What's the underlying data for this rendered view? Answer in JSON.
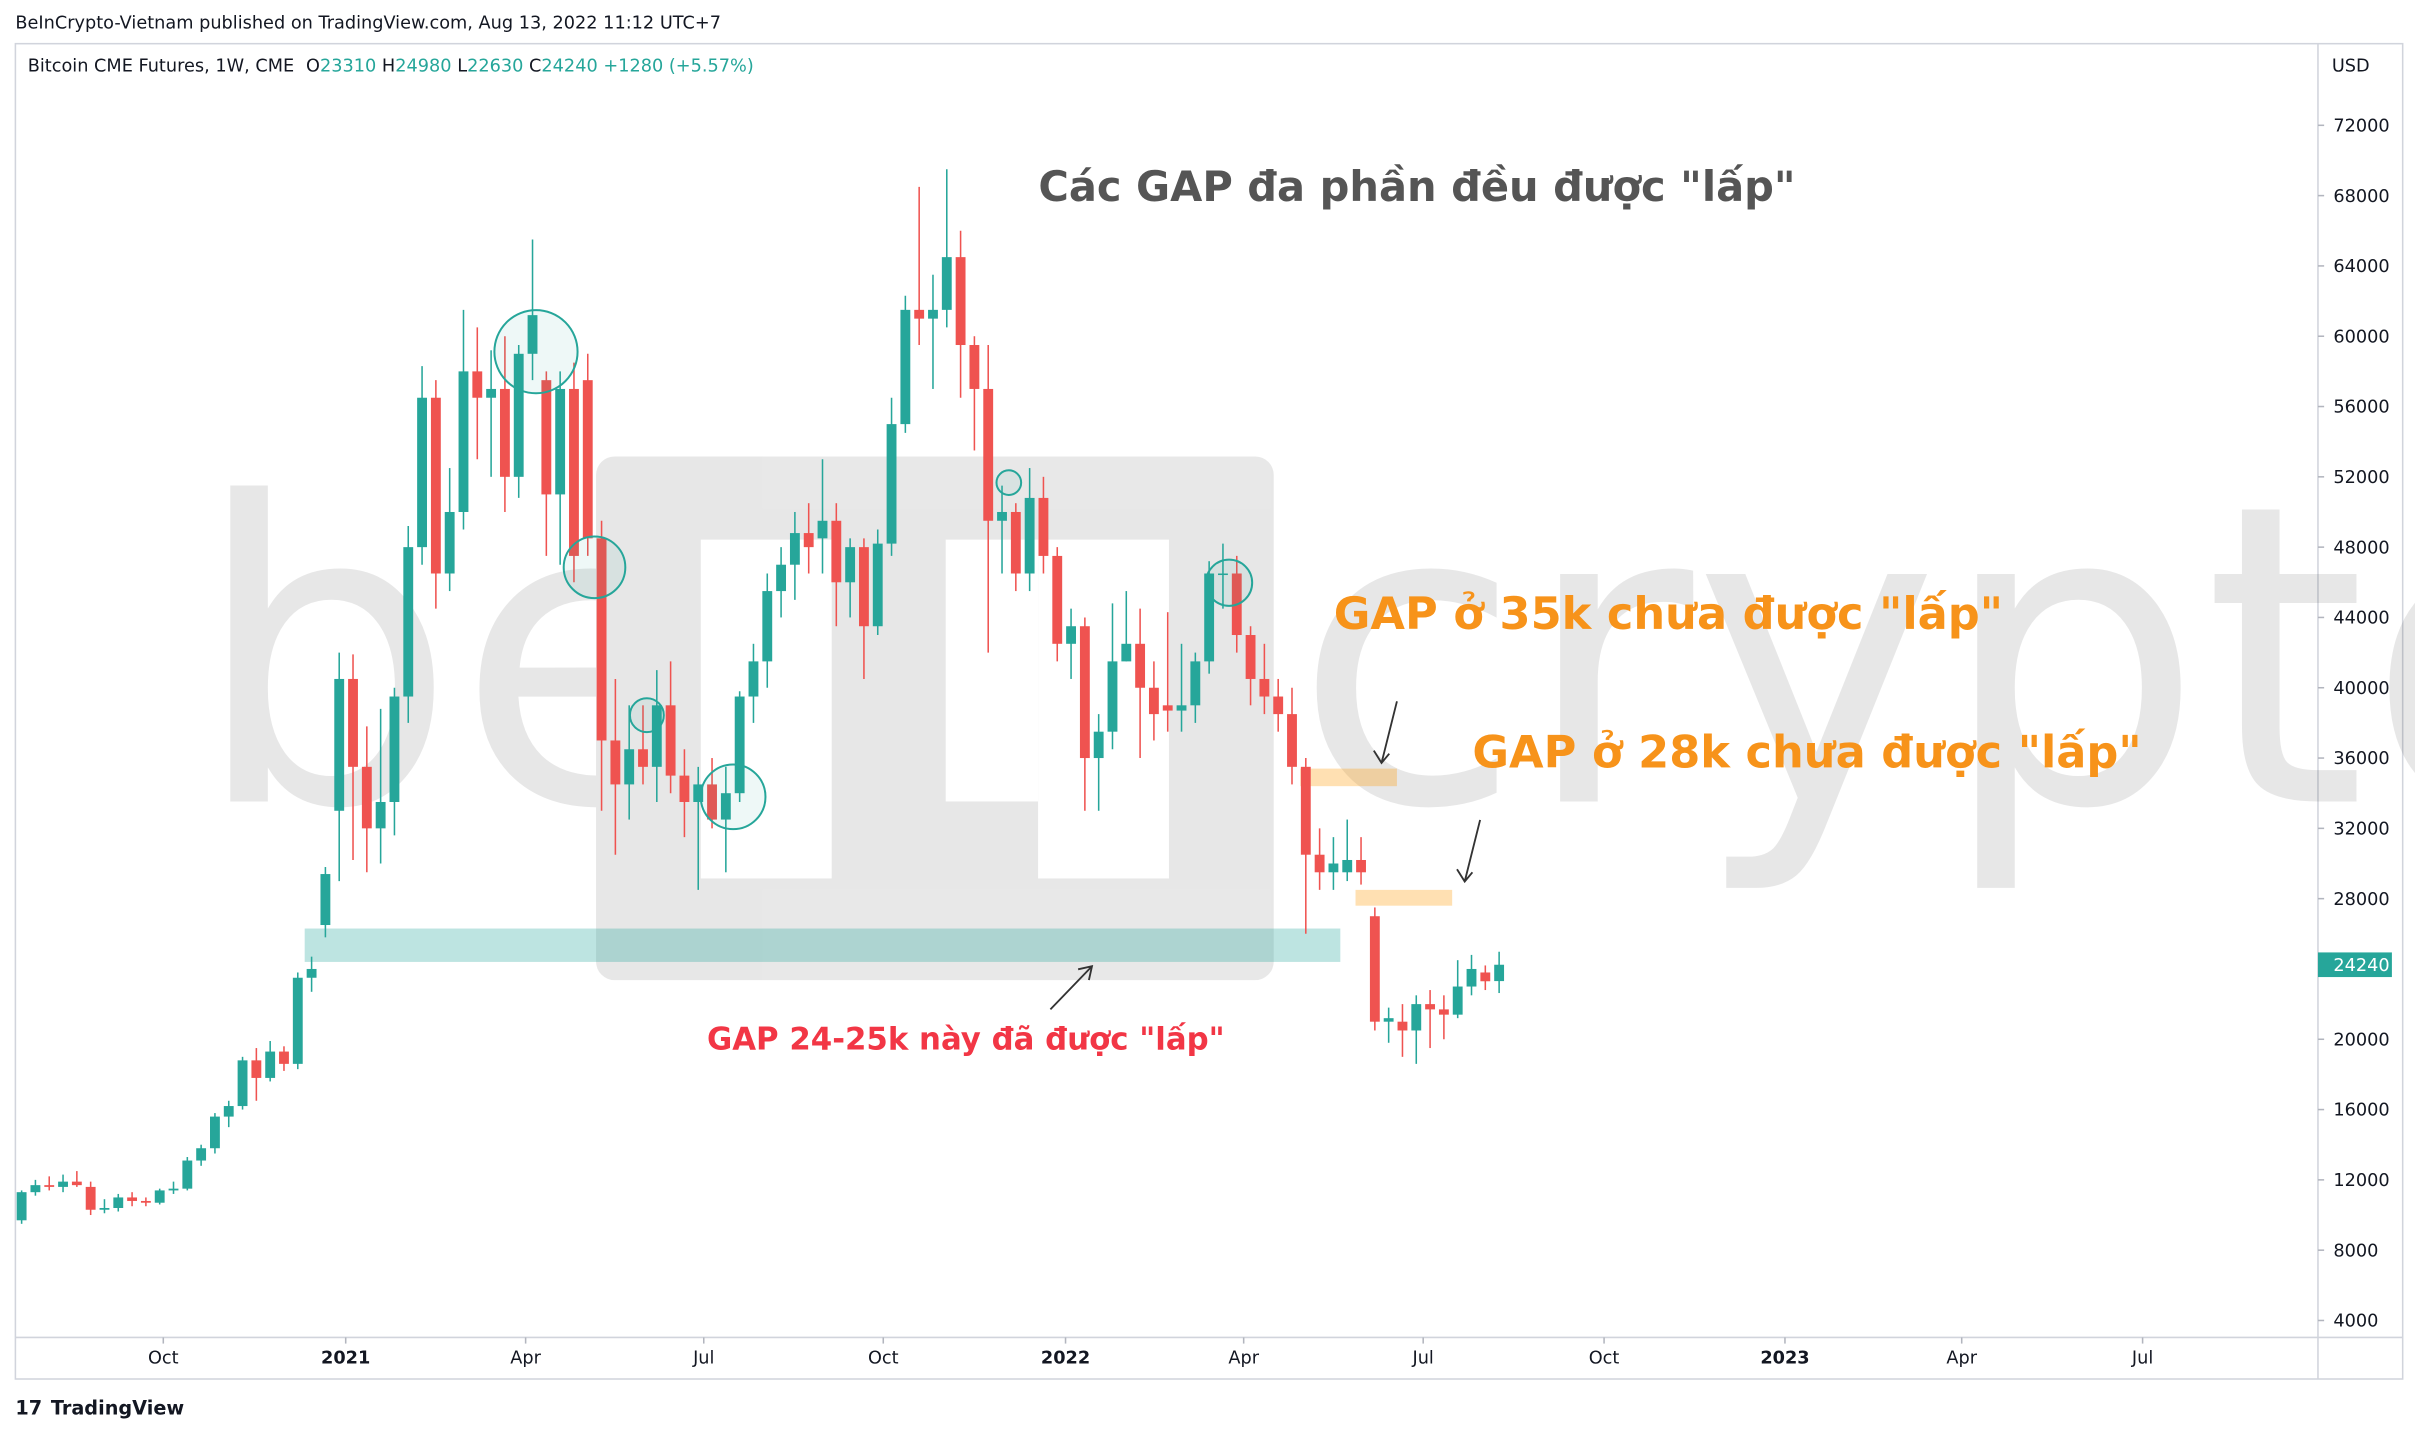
{
  "header": "BeInCrypto-Vietnam published on TradingView.com, Aug 13, 2022 11:12 UTC+7",
  "footer": "TradingView",
  "chart_data": {
    "type": "candlestick",
    "symbol": "Bitcoin CME Futures, 1W, CME",
    "legend_letters": [
      "O",
      "H",
      "L",
      "C"
    ],
    "change_label": "+1280 (+5.57%)",
    "currency": "USD",
    "title": "Các GAP đa phần đều được \"lấp\"",
    "annotations": [
      "GAP ở 35k chưa được \"lấp\"",
      "GAP ở 28k chưa được \"lấp\"",
      "GAP 24-25k này đã được \"lấp\""
    ],
    "watermark": [
      "be",
      "crypto"
    ],
    "up_color": "#26a69a",
    "down_color": "#ef5350",
    "open": [
      9700,
      11300,
      11700,
      11600,
      11900,
      11600,
      10300,
      10400,
      11000,
      10800,
      10700,
      11400,
      11500,
      13100,
      13800,
      15600,
      16200,
      18800,
      17800,
      19300,
      18600,
      23500,
      26500,
      33000,
      40500,
      35500,
      32000,
      33500,
      39500,
      48000,
      56500,
      46500,
      50000,
      58000,
      56500,
      57000,
      52000,
      59000,
      57500,
      51000,
      57000,
      57500,
      48500,
      37000,
      34500,
      36500,
      35500,
      39000,
      35000,
      33500,
      34500,
      32500,
      34000,
      39500,
      41500,
      45500,
      47000,
      48800,
      48500,
      49500,
      46000,
      48000,
      43500,
      48200,
      55000,
      61500,
      61000,
      61500,
      64500,
      59500,
      57000,
      49500,
      50000,
      46500,
      50800,
      47500,
      42500,
      43500,
      36000,
      37500,
      41500,
      42500,
      40000,
      39000,
      38700,
      39000,
      41500,
      46500,
      46500,
      43000,
      40500,
      39500,
      38500,
      35500,
      30500,
      29500,
      29500,
      30200,
      27000,
      21000,
      21000,
      20500,
      22000,
      21700,
      21400,
      23000,
      23800,
      23310
    ],
    "high": [
      11400,
      12000,
      12200,
      12300,
      12500,
      11900,
      10900,
      11200,
      11300,
      11000,
      11500,
      11900,
      13300,
      14000,
      15800,
      16500,
      19000,
      19500,
      19900,
      19600,
      23800,
      24700,
      29800,
      42000,
      41900,
      37800,
      38800,
      40000,
      49200,
      58300,
      57500,
      52500,
      61500,
      60500,
      59200,
      60000,
      59500,
      65500,
      58000,
      58000,
      58500,
      59000,
      49500,
      40500,
      39000,
      39000,
      41000,
      41500,
      36500,
      35500,
      36000,
      35500,
      39800,
      42500,
      46500,
      48000,
      50000,
      50500,
      53000,
      50500,
      48500,
      48500,
      49000,
      56500,
      62300,
      68500,
      63500,
      69500,
      66000,
      60000,
      59500,
      51500,
      50500,
      52500,
      52000,
      48000,
      44500,
      44000,
      38500,
      44800,
      45500,
      44500,
      41500,
      44300,
      42500,
      42000,
      47200,
      48200,
      47500,
      43500,
      42500,
      40500,
      40000,
      36000,
      32000,
      31500,
      32500,
      31500,
      27500,
      21800,
      22000,
      22500,
      22800,
      22500,
      24500,
      24800,
      24200,
      24980
    ],
    "low": [
      9500,
      11100,
      11400,
      11300,
      11600,
      10000,
      10100,
      10200,
      10500,
      10500,
      10600,
      11200,
      11400,
      12800,
      13500,
      15000,
      16000,
      16500,
      17600,
      18200,
      18300,
      22700,
      25800,
      29000,
      30200,
      29500,
      30000,
      31600,
      38000,
      47000,
      44500,
      45500,
      49000,
      53000,
      52000,
      50000,
      50800,
      57500,
      47500,
      47000,
      46000,
      47500,
      33000,
      30500,
      32500,
      34500,
      33500,
      34000,
      31500,
      28500,
      32000,
      29500,
      33500,
      38000,
      40000,
      44000,
      45000,
      46500,
      46500,
      43500,
      44000,
      40500,
      43000,
      47500,
      54500,
      59500,
      57000,
      60500,
      56500,
      53500,
      42000,
      46500,
      45500,
      45500,
      46500,
      41500,
      40500,
      33000,
      33000,
      36500,
      41500,
      36000,
      37000,
      37500,
      37500,
      38000,
      40800,
      44500,
      42000,
      39000,
      38500,
      37500,
      34500,
      26000,
      28500,
      28500,
      29000,
      28800,
      20500,
      19800,
      19000,
      18600,
      19500,
      20000,
      21200,
      22500,
      22800,
      22630
    ],
    "close": [
      11300,
      11700,
      11600,
      11900,
      11700,
      10300,
      10400,
      11000,
      10800,
      10700,
      11400,
      11500,
      13100,
      13800,
      15600,
      16200,
      18800,
      17800,
      19300,
      18600,
      23500,
      24000,
      29400,
      40500,
      35500,
      32000,
      33500,
      39500,
      48000,
      56500,
      46500,
      50000,
      58000,
      56500,
      57000,
      52000,
      59000,
      61200,
      51000,
      57000,
      47500,
      48500,
      37000,
      34500,
      36500,
      35500,
      39000,
      35000,
      33500,
      34500,
      32500,
      34000,
      39500,
      41500,
      45500,
      47000,
      48800,
      48000,
      49500,
      46000,
      48000,
      43500,
      48200,
      55000,
      61500,
      61000,
      61500,
      64500,
      59500,
      57000,
      49500,
      50000,
      46500,
      50800,
      47500,
      42500,
      43500,
      36000,
      37500,
      41500,
      42500,
      40000,
      38500,
      38700,
      39000,
      41500,
      46500,
      46500,
      43000,
      40500,
      39500,
      38500,
      35500,
      30500,
      29500,
      30000,
      30200,
      29500,
      21000,
      21200,
      20500,
      22000,
      21700,
      21400,
      23000,
      24000,
      23300,
      24240
    ],
    "zones": [
      {
        "from": 20.5,
        "to": 95.5,
        "low": 24400,
        "high": 26300,
        "color": "#26a69a"
      },
      {
        "from": 92.6,
        "to": 99.6,
        "low": 34400,
        "high": 35400,
        "color": "#ff9800"
      },
      {
        "from": 96.6,
        "to": 103.6,
        "low": 27600,
        "high": 28500,
        "color": "#ff9800"
      }
    ],
    "xlim": [
      -0.45,
      166.3
    ],
    "xticks": [
      {
        "value": 10.26,
        "label": "Oct"
      },
      {
        "value": 23.47,
        "label": "2021"
      },
      {
        "value": 36.5,
        "label": "Apr"
      },
      {
        "value": 49.4,
        "label": "Jul"
      },
      {
        "value": 62.4,
        "label": "Oct"
      },
      {
        "value": 75.6,
        "label": "2022"
      },
      {
        "value": 88.5,
        "label": "Apr"
      },
      {
        "value": 101.5,
        "label": "Jul"
      },
      {
        "value": 114.6,
        "label": "Oct"
      },
      {
        "value": 127.7,
        "label": "2023"
      },
      {
        "value": 140.5,
        "label": "Apr"
      },
      {
        "value": 153.6,
        "label": "Jul"
      }
    ],
    "ylim": [
      3036,
      76645
    ],
    "yticks": [
      4000,
      8000,
      12000,
      16000,
      20000,
      24000,
      28000,
      32000,
      36000,
      40000,
      44000,
      48000,
      52000,
      56000,
      60000,
      64000,
      68000,
      72000
    ]
  }
}
